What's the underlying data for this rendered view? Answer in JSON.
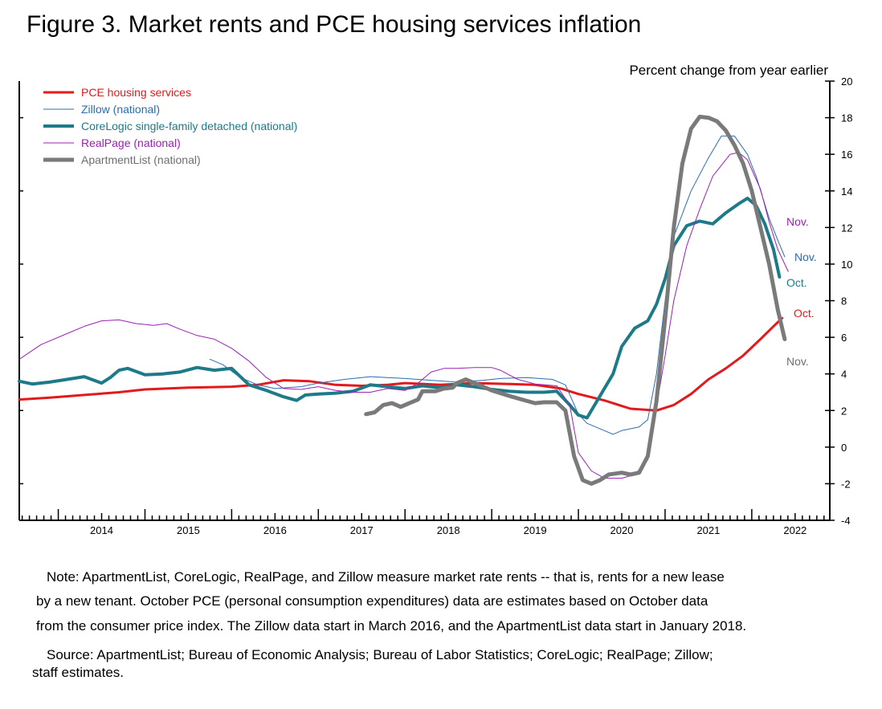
{
  "title": "Figure 3. Market rents and PCE housing services inflation",
  "note_lines": [
    "Note: ApartmentList, CoreLogic, RealPage, and Zillow measure market rate rents -- that is, rents for a new lease",
    "by a new tenant. October PCE (personal consumption expenditures) data are estimates based on October data",
    "from the consumer price index. The Zillow data start in March 2016, and the ApartmentList data start in January 2018."
  ],
  "source_lines": [
    "Source: ApartmentList; Bureau of Economic Analysis; Bureau of Labor Statistics; CoreLogic; RealPage; Zillow;",
    "staff estimates."
  ],
  "chart_data": {
    "type": "line",
    "ylabel": "Percent change from year earlier",
    "ylim": [
      -4,
      20
    ],
    "yticks": [
      -4,
      -2,
      0,
      2,
      4,
      6,
      8,
      10,
      12,
      14,
      16,
      18,
      20
    ],
    "xlim": [
      2013.55,
      2022.9
    ],
    "xticks": [
      "2014",
      "2015",
      "2016",
      "2017",
      "2018",
      "2019",
      "2020",
      "2021",
      "2022"
    ],
    "legend_position": "top-left",
    "series": [
      {
        "name": "PCE housing services",
        "color": "#e31a1c",
        "end_label": "Oct.",
        "points": [
          [
            2013.55,
            2.6
          ],
          [
            2013.9,
            2.7
          ],
          [
            2014.3,
            2.85
          ],
          [
            2014.7,
            3.0
          ],
          [
            2015.0,
            3.15
          ],
          [
            2015.5,
            3.25
          ],
          [
            2016.0,
            3.3
          ],
          [
            2016.3,
            3.4
          ],
          [
            2016.6,
            3.65
          ],
          [
            2016.9,
            3.6
          ],
          [
            2017.2,
            3.4
          ],
          [
            2017.5,
            3.35
          ],
          [
            2017.8,
            3.4
          ],
          [
            2018.0,
            3.5
          ],
          [
            2018.4,
            3.4
          ],
          [
            2018.8,
            3.5
          ],
          [
            2019.2,
            3.45
          ],
          [
            2019.5,
            3.4
          ],
          [
            2019.8,
            3.2
          ],
          [
            2020.0,
            2.9
          ],
          [
            2020.3,
            2.55
          ],
          [
            2020.6,
            2.1
          ],
          [
            2020.9,
            2.0
          ],
          [
            2021.1,
            2.3
          ],
          [
            2021.3,
            2.9
          ],
          [
            2021.5,
            3.7
          ],
          [
            2021.7,
            4.3
          ],
          [
            2021.9,
            5.0
          ],
          [
            2022.1,
            5.9
          ],
          [
            2022.25,
            6.6
          ],
          [
            2022.35,
            7.05
          ]
        ]
      },
      {
        "name": "Zillow (national)",
        "color": "#2b6cb0",
        "end_label": "Nov.",
        "points": [
          [
            2015.75,
            4.8
          ],
          [
            2015.9,
            4.5
          ],
          [
            2016.1,
            3.8
          ],
          [
            2016.3,
            3.4
          ],
          [
            2016.5,
            3.2
          ],
          [
            2016.8,
            3.3
          ],
          [
            2017.0,
            3.5
          ],
          [
            2017.3,
            3.7
          ],
          [
            2017.6,
            3.85
          ],
          [
            2017.8,
            3.8
          ],
          [
            2018.0,
            3.75
          ],
          [
            2018.3,
            3.65
          ],
          [
            2018.6,
            3.55
          ],
          [
            2018.9,
            3.65
          ],
          [
            2019.1,
            3.75
          ],
          [
            2019.4,
            3.8
          ],
          [
            2019.7,
            3.7
          ],
          [
            2019.85,
            3.4
          ],
          [
            2020.0,
            1.8
          ],
          [
            2020.1,
            1.3
          ],
          [
            2020.3,
            0.9
          ],
          [
            2020.4,
            0.7
          ],
          [
            2020.5,
            0.9
          ],
          [
            2020.7,
            1.1
          ],
          [
            2020.8,
            1.5
          ],
          [
            2020.9,
            4.0
          ],
          [
            2021.0,
            8.0
          ],
          [
            2021.1,
            11.5
          ],
          [
            2021.3,
            14.0
          ],
          [
            2021.5,
            15.8
          ],
          [
            2021.65,
            17.0
          ],
          [
            2021.8,
            17.0
          ],
          [
            2021.95,
            16.0
          ],
          [
            2022.05,
            14.8
          ],
          [
            2022.2,
            12.5
          ],
          [
            2022.3,
            11.3
          ],
          [
            2022.38,
            10.4
          ]
        ]
      },
      {
        "name": "CoreLogic single-family detached (national)",
        "color": "#1d7a88",
        "end_label": "Oct.",
        "points": [
          [
            2013.55,
            3.6
          ],
          [
            2013.7,
            3.45
          ],
          [
            2013.9,
            3.55
          ],
          [
            2014.1,
            3.7
          ],
          [
            2014.3,
            3.85
          ],
          [
            2014.5,
            3.5
          ],
          [
            2014.6,
            3.8
          ],
          [
            2014.7,
            4.2
          ],
          [
            2014.8,
            4.3
          ],
          [
            2015.0,
            3.95
          ],
          [
            2015.2,
            4.0
          ],
          [
            2015.4,
            4.1
          ],
          [
            2015.6,
            4.35
          ],
          [
            2015.8,
            4.2
          ],
          [
            2016.0,
            4.3
          ],
          [
            2016.2,
            3.4
          ],
          [
            2016.4,
            3.1
          ],
          [
            2016.6,
            2.75
          ],
          [
            2016.75,
            2.55
          ],
          [
            2016.85,
            2.85
          ],
          [
            2017.0,
            2.9
          ],
          [
            2017.2,
            2.95
          ],
          [
            2017.4,
            3.05
          ],
          [
            2017.6,
            3.4
          ],
          [
            2017.8,
            3.3
          ],
          [
            2018.0,
            3.2
          ],
          [
            2018.2,
            3.35
          ],
          [
            2018.4,
            3.25
          ],
          [
            2018.6,
            3.4
          ],
          [
            2018.8,
            3.3
          ],
          [
            2019.0,
            3.15
          ],
          [
            2019.2,
            3.05
          ],
          [
            2019.4,
            3.0
          ],
          [
            2019.6,
            3.0
          ],
          [
            2019.75,
            3.05
          ],
          [
            2019.9,
            2.3
          ],
          [
            2020.0,
            1.75
          ],
          [
            2020.1,
            1.6
          ],
          [
            2020.25,
            2.8
          ],
          [
            2020.4,
            4.0
          ],
          [
            2020.5,
            5.5
          ],
          [
            2020.65,
            6.5
          ],
          [
            2020.8,
            6.9
          ],
          [
            2020.9,
            7.8
          ],
          [
            2021.0,
            9.2
          ],
          [
            2021.1,
            11.0
          ],
          [
            2021.25,
            12.1
          ],
          [
            2021.4,
            12.35
          ],
          [
            2021.55,
            12.2
          ],
          [
            2021.7,
            12.8
          ],
          [
            2021.85,
            13.3
          ],
          [
            2021.95,
            13.6
          ],
          [
            2022.05,
            13.2
          ],
          [
            2022.15,
            12.2
          ],
          [
            2022.25,
            10.8
          ],
          [
            2022.32,
            9.3
          ]
        ]
      },
      {
        "name": "RealPage (national)",
        "color": "#9a21b4",
        "end_label": "Nov.",
        "points": [
          [
            2013.55,
            4.8
          ],
          [
            2013.8,
            5.6
          ],
          [
            2014.1,
            6.2
          ],
          [
            2014.3,
            6.6
          ],
          [
            2014.5,
            6.9
          ],
          [
            2014.7,
            6.95
          ],
          [
            2014.9,
            6.75
          ],
          [
            2015.1,
            6.65
          ],
          [
            2015.25,
            6.75
          ],
          [
            2015.4,
            6.45
          ],
          [
            2015.6,
            6.1
          ],
          [
            2015.8,
            5.9
          ],
          [
            2016.0,
            5.4
          ],
          [
            2016.2,
            4.7
          ],
          [
            2016.4,
            3.8
          ],
          [
            2016.6,
            3.2
          ],
          [
            2016.8,
            3.15
          ],
          [
            2017.0,
            3.3
          ],
          [
            2017.2,
            3.1
          ],
          [
            2017.4,
            3.0
          ],
          [
            2017.6,
            3.0
          ],
          [
            2017.8,
            3.2
          ],
          [
            2018.0,
            3.1
          ],
          [
            2018.15,
            3.5
          ],
          [
            2018.3,
            4.1
          ],
          [
            2018.45,
            4.3
          ],
          [
            2018.6,
            4.3
          ],
          [
            2018.8,
            4.35
          ],
          [
            2019.0,
            4.35
          ],
          [
            2019.1,
            4.2
          ],
          [
            2019.3,
            3.7
          ],
          [
            2019.5,
            3.45
          ],
          [
            2019.75,
            3.35
          ],
          [
            2019.9,
            2.3
          ],
          [
            2020.0,
            -0.3
          ],
          [
            2020.15,
            -1.3
          ],
          [
            2020.3,
            -1.7
          ],
          [
            2020.5,
            -1.7
          ],
          [
            2020.65,
            -1.5
          ],
          [
            2020.8,
            -0.7
          ],
          [
            2020.9,
            2.2
          ],
          [
            2021.0,
            5.0
          ],
          [
            2021.1,
            8.0
          ],
          [
            2021.25,
            11.0
          ],
          [
            2021.4,
            13.0
          ],
          [
            2021.55,
            14.8
          ],
          [
            2021.75,
            16.0
          ],
          [
            2021.85,
            16.1
          ],
          [
            2021.95,
            15.7
          ],
          [
            2022.1,
            14.1
          ],
          [
            2022.2,
            12.3
          ],
          [
            2022.3,
            10.8
          ],
          [
            2022.42,
            9.6
          ]
        ]
      },
      {
        "name": "ApartmentList (national)",
        "color": "#7a7a7a",
        "end_label": "Nov.",
        "points": [
          [
            2017.55,
            1.8
          ],
          [
            2017.65,
            1.9
          ],
          [
            2017.75,
            2.3
          ],
          [
            2017.85,
            2.4
          ],
          [
            2017.95,
            2.2
          ],
          [
            2018.05,
            2.4
          ],
          [
            2018.15,
            2.6
          ],
          [
            2018.2,
            3.05
          ],
          [
            2018.35,
            3.05
          ],
          [
            2018.45,
            3.2
          ],
          [
            2018.55,
            3.25
          ],
          [
            2018.6,
            3.5
          ],
          [
            2018.7,
            3.7
          ],
          [
            2018.8,
            3.5
          ],
          [
            2018.9,
            3.3
          ],
          [
            2019.0,
            3.1
          ],
          [
            2019.1,
            2.95
          ],
          [
            2019.2,
            2.8
          ],
          [
            2019.35,
            2.6
          ],
          [
            2019.5,
            2.4
          ],
          [
            2019.6,
            2.45
          ],
          [
            2019.75,
            2.45
          ],
          [
            2019.85,
            2.0
          ],
          [
            2019.95,
            -0.5
          ],
          [
            2020.05,
            -1.8
          ],
          [
            2020.15,
            -2.0
          ],
          [
            2020.25,
            -1.8
          ],
          [
            2020.35,
            -1.5
          ],
          [
            2020.5,
            -1.4
          ],
          [
            2020.6,
            -1.5
          ],
          [
            2020.7,
            -1.4
          ],
          [
            2020.8,
            -0.5
          ],
          [
            2020.9,
            2.5
          ],
          [
            2021.0,
            7.0
          ],
          [
            2021.1,
            12.0
          ],
          [
            2021.2,
            15.5
          ],
          [
            2021.3,
            17.4
          ],
          [
            2021.4,
            18.05
          ],
          [
            2021.5,
            18.0
          ],
          [
            2021.6,
            17.8
          ],
          [
            2021.7,
            17.3
          ],
          [
            2021.8,
            16.5
          ],
          [
            2021.9,
            15.5
          ],
          [
            2022.0,
            14.0
          ],
          [
            2022.1,
            12.0
          ],
          [
            2022.2,
            10.0
          ],
          [
            2022.3,
            7.5
          ],
          [
            2022.38,
            5.9
          ]
        ]
      }
    ]
  }
}
